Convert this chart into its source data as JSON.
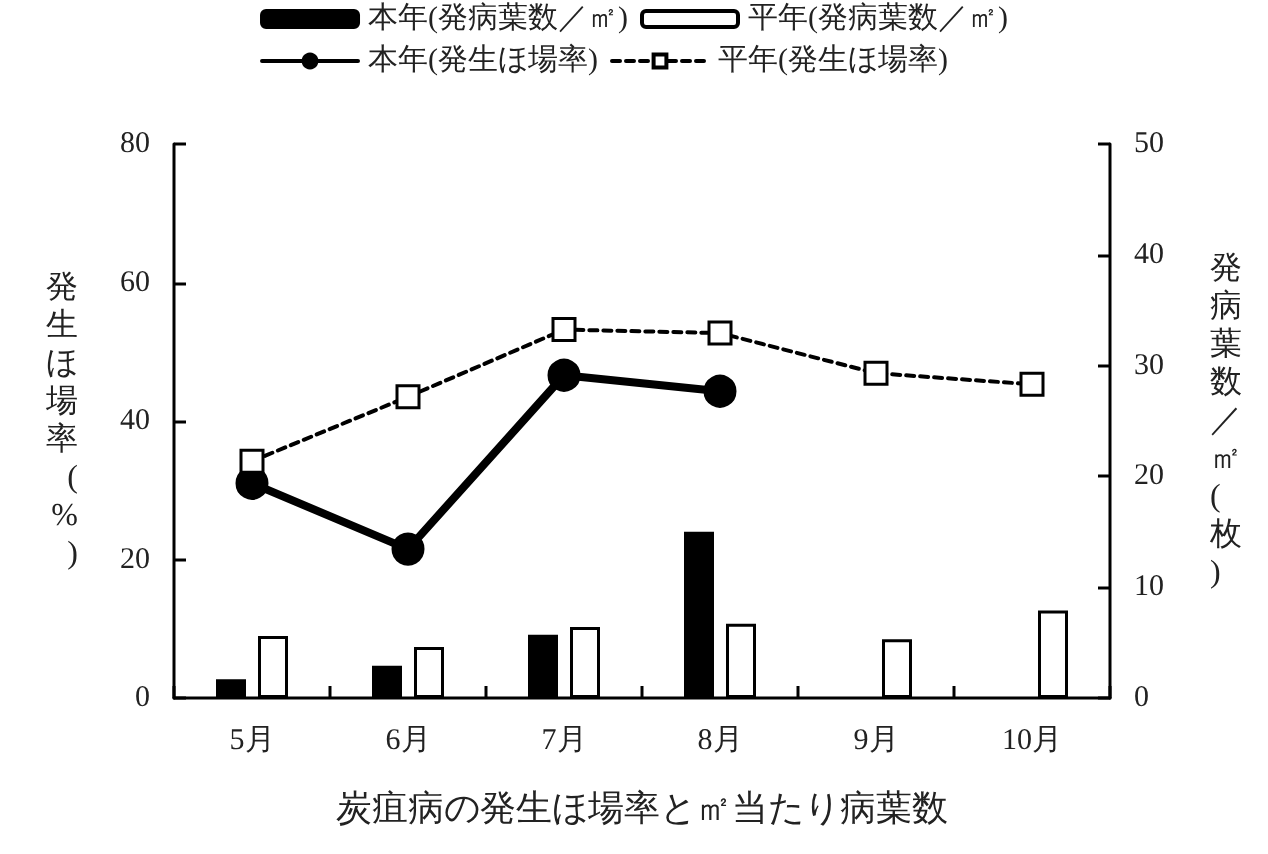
{
  "chart_data": {
    "type": "bar",
    "xlabel": "炭疽病の発生ほ場率と㎡当たり病葉数",
    "ylabel": "発生ほ場率(%)",
    "y2label": "発病葉数／㎡(枚)",
    "categories": [
      "5月",
      "6月",
      "7月",
      "8月",
      "9月",
      "10月"
    ],
    "series": [
      {
        "name": "本年(発病葉数／㎡)",
        "axis": "y2",
        "color": "#000000",
        "values": [
          1.7,
          2.9,
          5.7,
          15.0,
          null,
          null
        ]
      },
      {
        "name": "平年(発病葉数／㎡)",
        "axis": "y2",
        "color": "#ffffff",
        "values": [
          5.6,
          4.6,
          6.4,
          6.7,
          5.3,
          7.9
        ]
      },
      {
        "name": "本年(発生ほ場率)",
        "type": "line",
        "color": "#000000",
        "marker": "circle",
        "line_style": "solid",
        "values": [
          31,
          21.5,
          46.6,
          44.3,
          null,
          null
        ]
      },
      {
        "name": "平年(発生ほ場率)",
        "type": "line",
        "color": "#000000",
        "marker": "square",
        "line_style": "dashed",
        "values": [
          34.2,
          43.5,
          53.2,
          52.7,
          46.9,
          45.3
        ]
      }
    ],
    "ylim": [
      0,
      80
    ],
    "yticks": [
      0,
      20,
      40,
      60,
      80
    ],
    "y2lim": [
      0,
      50
    ],
    "y2ticks": [
      0,
      10,
      20,
      30,
      40,
      50
    ],
    "grid": false,
    "legend": "top"
  }
}
